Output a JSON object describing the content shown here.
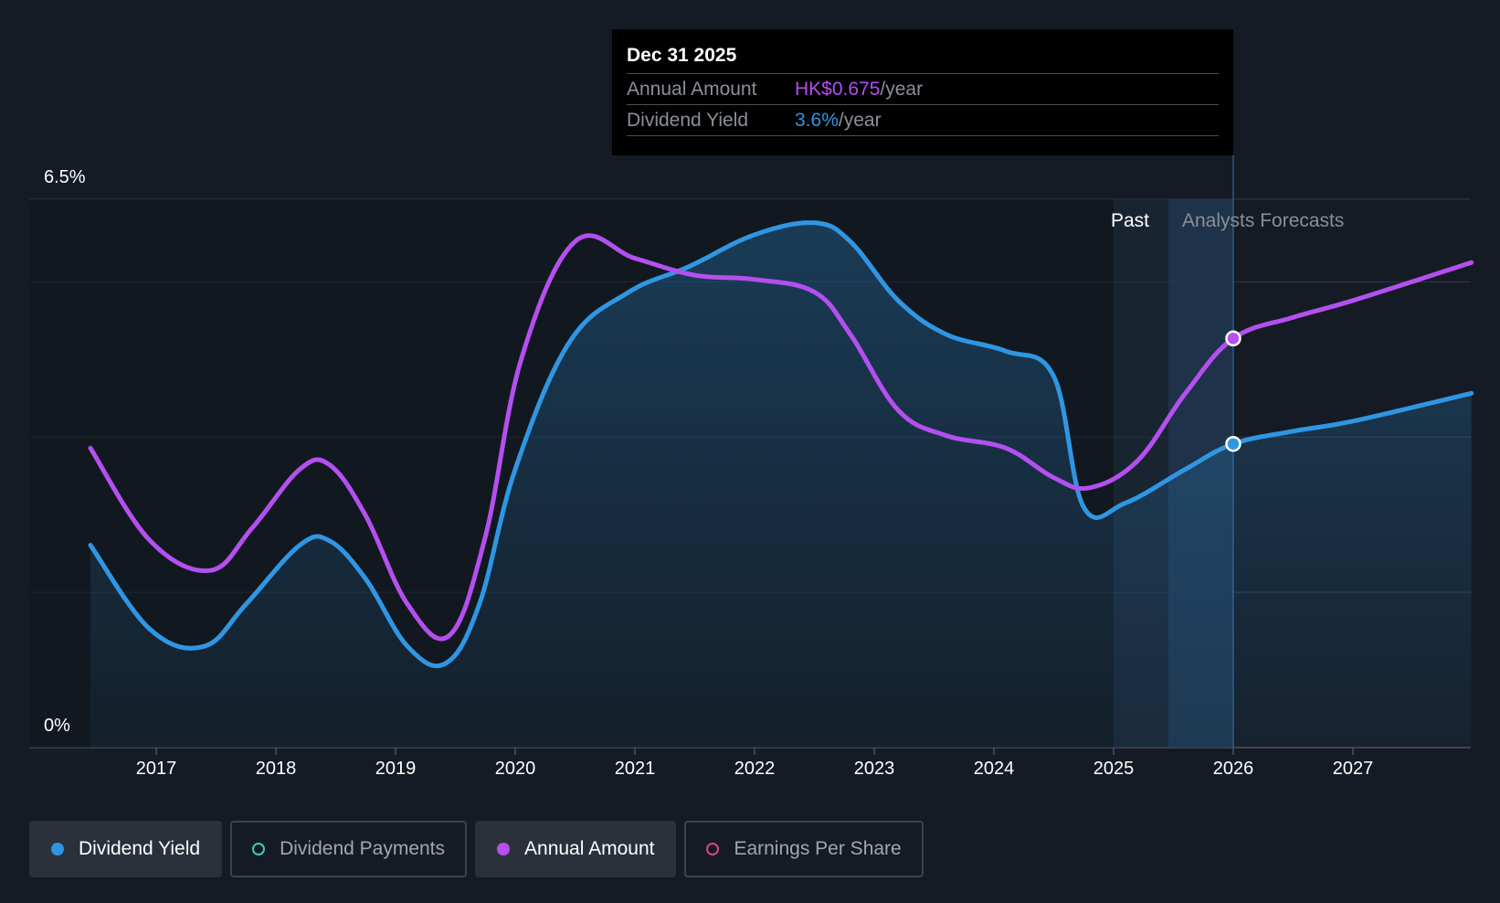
{
  "tooltip": {
    "date": "Dec 31 2025",
    "rows": [
      {
        "label": "Annual Amount",
        "value": "HK$0.675",
        "unit": "/year"
      },
      {
        "label": "Dividend Yield",
        "value": "3.6%",
        "unit": "/year"
      }
    ]
  },
  "regions": {
    "past_label": "Past",
    "forecast_label": "Analysts Forecasts"
  },
  "legend": [
    {
      "label": "Dividend Yield",
      "color": "#2f96e4",
      "active": true,
      "marker": "filled"
    },
    {
      "label": "Dividend Payments",
      "color": "#3ec9b6",
      "active": false,
      "marker": "hollow"
    },
    {
      "label": "Annual Amount",
      "color": "#b44ff0",
      "active": true,
      "marker": "filled"
    },
    {
      "label": "Earnings Per Share",
      "color": "#d9467f",
      "active": false,
      "marker": "hollow"
    }
  ],
  "colors": {
    "yield": "#2f96e4",
    "amount": "#b44ff0",
    "background": "#151b24",
    "grid": "#2e3540"
  },
  "chart_data": {
    "type": "line",
    "ylim": [
      0,
      6.5
    ],
    "y_tick_labels": [
      "0%",
      "6.5%"
    ],
    "x_ticks": [
      2017,
      2018,
      2019,
      2020,
      2021,
      2022,
      2023,
      2024,
      2025,
      2026,
      2027
    ],
    "xlim": [
      2016.0,
      2028.0
    ],
    "grid": true,
    "past_forecast_boundary": 2025.0,
    "highlight_x": 2026.0,
    "series": [
      {
        "name": "Dividend Yield",
        "unit": "%",
        "area": true,
        "points": [
          [
            2016.45,
            2.4
          ],
          [
            2016.95,
            1.4
          ],
          [
            2017.4,
            1.2
          ],
          [
            2017.75,
            1.7
          ],
          [
            2018.2,
            2.4
          ],
          [
            2018.45,
            2.45
          ],
          [
            2018.75,
            2.0
          ],
          [
            2019.1,
            1.2
          ],
          [
            2019.42,
            1.0
          ],
          [
            2019.7,
            1.7
          ],
          [
            2020.0,
            3.3
          ],
          [
            2020.45,
            4.8
          ],
          [
            2020.95,
            5.4
          ],
          [
            2021.45,
            5.7
          ],
          [
            2022.0,
            6.08
          ],
          [
            2022.5,
            6.22
          ],
          [
            2022.8,
            6.0
          ],
          [
            2023.2,
            5.3
          ],
          [
            2023.6,
            4.9
          ],
          [
            2024.1,
            4.7
          ],
          [
            2024.5,
            4.4
          ],
          [
            2024.75,
            2.85
          ],
          [
            2025.1,
            2.9
          ],
          [
            2025.6,
            3.3
          ],
          [
            2026.0,
            3.6
          ],
          [
            2026.5,
            3.75
          ],
          [
            2027.0,
            3.87
          ],
          [
            2027.99,
            4.2
          ]
        ]
      },
      {
        "name": "Annual Amount",
        "unit": "HK$",
        "area": false,
        "points": [
          [
            2016.45,
            3.55
          ],
          [
            2016.95,
            2.45
          ],
          [
            2017.45,
            2.1
          ],
          [
            2017.8,
            2.6
          ],
          [
            2018.2,
            3.3
          ],
          [
            2018.45,
            3.35
          ],
          [
            2018.75,
            2.75
          ],
          [
            2019.1,
            1.7
          ],
          [
            2019.45,
            1.33
          ],
          [
            2019.75,
            2.5
          ],
          [
            2020.05,
            4.6
          ],
          [
            2020.5,
            6.0
          ],
          [
            2021.0,
            5.8
          ],
          [
            2021.5,
            5.6
          ],
          [
            2022.0,
            5.55
          ],
          [
            2022.5,
            5.4
          ],
          [
            2022.8,
            4.9
          ],
          [
            2023.2,
            4.0
          ],
          [
            2023.6,
            3.7
          ],
          [
            2024.1,
            3.55
          ],
          [
            2024.5,
            3.2
          ],
          [
            2024.8,
            3.08
          ],
          [
            2025.2,
            3.4
          ],
          [
            2025.6,
            4.2
          ],
          [
            2026.0,
            4.85
          ],
          [
            2026.5,
            5.1
          ],
          [
            2027.0,
            5.3
          ],
          [
            2027.99,
            5.75
          ]
        ]
      }
    ]
  }
}
